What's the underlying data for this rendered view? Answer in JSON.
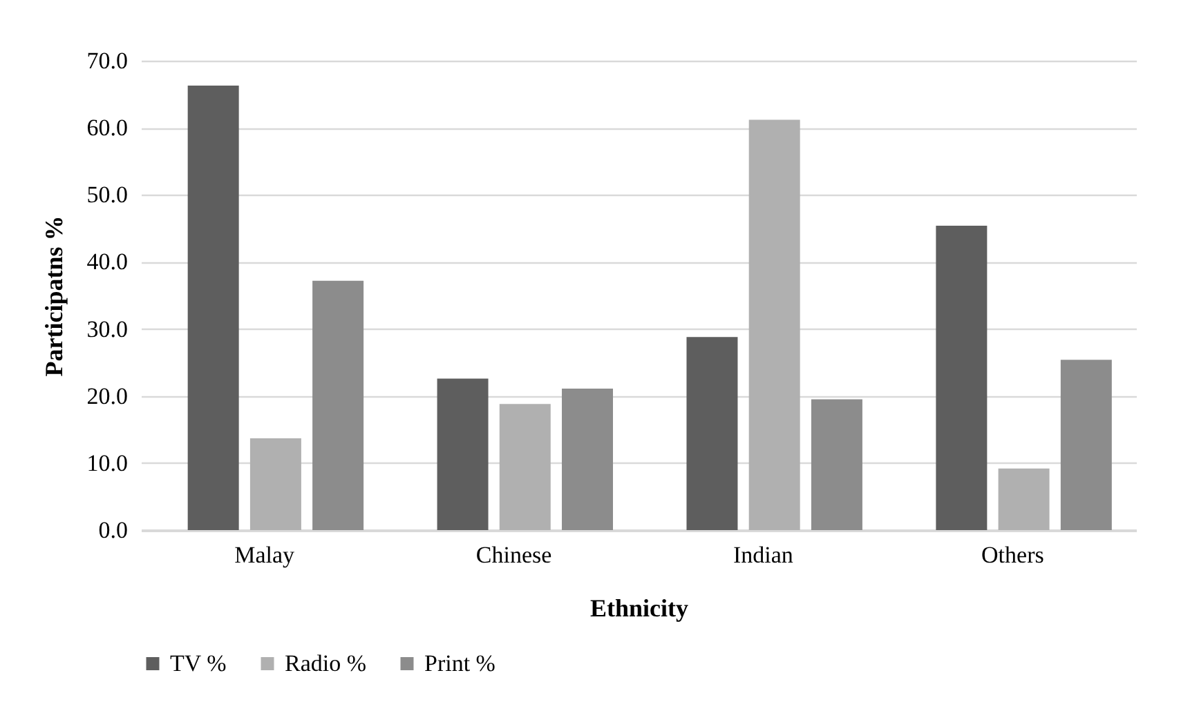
{
  "chart_data": {
    "type": "bar",
    "xlabel": "Ethnicity",
    "ylabel": "Participatns %",
    "categories": [
      "Malay",
      "Chinese",
      "Indian",
      "Others"
    ],
    "series": [
      {
        "name": "TV %",
        "color": "#5e5e5e",
        "values": [
          66.3,
          22.6,
          28.8,
          45.4
        ]
      },
      {
        "name": "Radio %",
        "color": "#b0b0b0",
        "values": [
          13.7,
          18.8,
          61.2,
          9.2
        ]
      },
      {
        "name": "Print %",
        "color": "#8c8c8c",
        "values": [
          37.2,
          21.1,
          19.5,
          25.4
        ]
      }
    ],
    "ylim": [
      0,
      70
    ],
    "yticks": [
      {
        "value": 0,
        "label": "0.0"
      },
      {
        "value": 10,
        "label": "10.0"
      },
      {
        "value": 20,
        "label": "20.0"
      },
      {
        "value": 30,
        "label": "30.0"
      },
      {
        "value": 40,
        "label": "40.0"
      },
      {
        "value": 50,
        "label": "50.0"
      },
      {
        "value": 60,
        "label": "60.0"
      },
      {
        "value": 70,
        "label": "70.0"
      }
    ],
    "grid": "y",
    "legend": "bottom"
  }
}
